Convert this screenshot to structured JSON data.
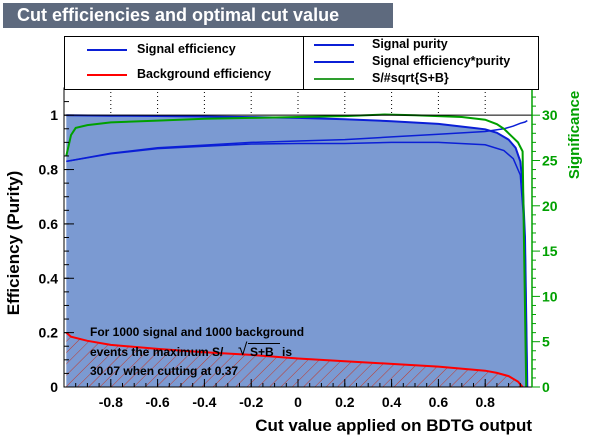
{
  "title": "Cut efficiencies and optimal cut value",
  "legend_left": [
    {
      "label": "Signal efficiency",
      "color": "#0b1fd6"
    },
    {
      "label": "Background efficiency",
      "color": "#ff0000"
    }
  ],
  "legend_right": [
    {
      "label": "Signal purity",
      "color": "#0b1fd6"
    },
    {
      "label": "Signal efficiency*purity",
      "color": "#0b1fd6"
    },
    {
      "label": "S/#sqrt{S+B}",
      "color": "#2e9e2e"
    }
  ],
  "annotation": {
    "line1": "For 1000 signal and 1000 background",
    "line2a": "events the maximum S/",
    "line2b": "S+B",
    "line2c": "is",
    "line3": "30.07 when cutting at  0.37"
  },
  "colors": {
    "signal": "#0b1fd6",
    "signal_fill": "#7b9ad2",
    "background": "#ff0000",
    "background_hatch": "#c0392b",
    "significance": "#00a000",
    "title_bg": "#5e6a7e"
  },
  "chart_data": {
    "type": "line",
    "xlabel": "Cut value applied on BDTG output",
    "ylabel": "Efficiency (Purity)",
    "y2label": "Significance",
    "xlim": [
      -1.0,
      1.0
    ],
    "ylim": [
      0,
      1.1
    ],
    "y2lim": [
      0,
      33
    ],
    "xticks": [
      -0.8,
      -0.6,
      -0.4,
      -0.2,
      0,
      0.2,
      0.4,
      0.6,
      0.8
    ],
    "xtick_labels": [
      "-0.8",
      "-0.6",
      "-0.4",
      "-0.2",
      "0",
      "0.2",
      "0.4",
      "0.6",
      "0.8"
    ],
    "yticks": [
      0,
      0.2,
      0.4,
      0.6,
      0.8,
      1
    ],
    "ytick_labels": [
      "0",
      "0.2",
      "0.4",
      "0.6",
      "0.8",
      "1"
    ],
    "y2ticks": [
      0,
      5,
      10,
      15,
      20,
      25,
      30
    ],
    "y2tick_labels": [
      "0",
      "5",
      "10",
      "15",
      "20",
      "25",
      "30"
    ],
    "series": [
      {
        "name": "Signal efficiency",
        "x": [
          -0.99,
          -0.8,
          -0.6,
          -0.4,
          -0.2,
          0.0,
          0.2,
          0.4,
          0.6,
          0.8,
          0.85,
          0.9,
          0.93,
          0.95,
          0.96,
          0.97,
          0.98
        ],
        "y": [
          1.0,
          0.998,
          0.997,
          0.995,
          0.993,
          0.99,
          0.985,
          0.978,
          0.968,
          0.948,
          0.935,
          0.91,
          0.88,
          0.83,
          0.75,
          0.55,
          0.0
        ]
      },
      {
        "name": "Background efficiency",
        "x": [
          -0.99,
          -0.97,
          -0.9,
          -0.8,
          -0.6,
          -0.4,
          -0.2,
          0.0,
          0.2,
          0.4,
          0.6,
          0.8,
          0.85,
          0.9,
          0.94,
          0.96
        ],
        "y": [
          0.2,
          0.185,
          0.17,
          0.155,
          0.14,
          0.128,
          0.118,
          0.105,
          0.095,
          0.085,
          0.075,
          0.06,
          0.052,
          0.04,
          0.02,
          0.0
        ]
      },
      {
        "name": "Signal purity",
        "x": [
          -0.99,
          -0.8,
          -0.6,
          -0.4,
          -0.2,
          0.0,
          0.2,
          0.4,
          0.6,
          0.8,
          0.88,
          0.92,
          0.95,
          0.97,
          0.98
        ],
        "y": [
          0.83,
          0.86,
          0.88,
          0.89,
          0.9,
          0.905,
          0.91,
          0.92,
          0.93,
          0.94,
          0.95,
          0.96,
          0.97,
          0.975,
          0.98
        ]
      },
      {
        "name": "Signal efficiency*purity",
        "x": [
          -0.99,
          -0.8,
          -0.6,
          -0.4,
          -0.2,
          0.0,
          0.2,
          0.4,
          0.6,
          0.8,
          0.88,
          0.92,
          0.95,
          0.97,
          0.98
        ],
        "y": [
          0.83,
          0.858,
          0.877,
          0.886,
          0.894,
          0.896,
          0.896,
          0.9,
          0.9,
          0.891,
          0.87,
          0.84,
          0.78,
          0.55,
          0.0
        ]
      },
      {
        "name": "S/#sqrt{S+B}",
        "axis": "y2",
        "x": [
          -0.99,
          -0.97,
          -0.95,
          -0.9,
          -0.8,
          -0.6,
          -0.4,
          -0.2,
          0.0,
          0.2,
          0.37,
          0.5,
          0.6,
          0.7,
          0.8,
          0.85,
          0.88,
          0.9,
          0.92,
          0.94,
          0.96,
          0.975
        ],
        "y": [
          25.5,
          27.8,
          28.6,
          28.9,
          29.2,
          29.4,
          29.6,
          29.7,
          29.8,
          29.9,
          30.07,
          30.0,
          29.9,
          29.8,
          29.5,
          29.0,
          28.5,
          28.0,
          27.5,
          27.0,
          26.0,
          0.0
        ]
      }
    ]
  }
}
